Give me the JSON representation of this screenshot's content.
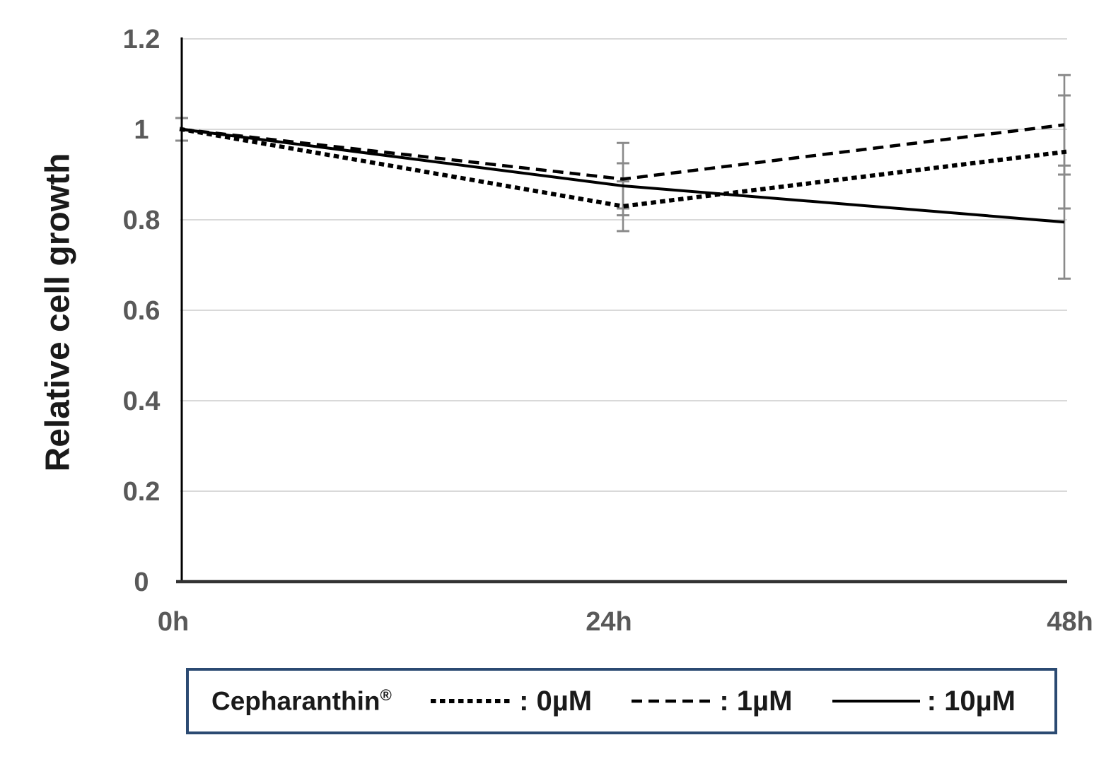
{
  "chart_data": {
    "type": "line",
    "title": "",
    "xlabel": "",
    "ylabel": "Relative cell growth",
    "categories": [
      "0h",
      "24h",
      "48h"
    ],
    "series": [
      {
        "name": "0µM",
        "pattern": "dotted",
        "values": [
          1.0,
          0.83,
          0.95
        ],
        "error": [
          0.025,
          0.055,
          0.125
        ]
      },
      {
        "name": "1µM",
        "pattern": "dashed",
        "values": [
          1.0,
          0.89,
          1.01
        ],
        "error": [
          0.025,
          0.08,
          0.11
        ]
      },
      {
        "name": "10µM",
        "pattern": "solid",
        "values": [
          1.0,
          0.875,
          0.795
        ],
        "error": [
          0.025,
          0.05,
          0.125
        ]
      }
    ],
    "ylim": [
      0,
      1.2
    ],
    "yticks": [
      0,
      0.2,
      0.4,
      0.6,
      0.8,
      1,
      1.2
    ],
    "ytick_labels": [
      "0",
      "0.2",
      "0.4",
      "0.6",
      "0.8",
      "1",
      "1.2"
    ],
    "grid": "horizontal",
    "legend_position": "bottom",
    "colors": {
      "line": "#000000",
      "error_bar": "#8a8a8a",
      "gridline": "#d9d9d9",
      "tick_label": "#595959",
      "y_axis": "#000000",
      "x_axis": "#333333",
      "legend_border": "#2b4a72"
    }
  },
  "legend": {
    "title": "Cepharanthin",
    "title_mark": "®",
    "items": [
      {
        "label": ": 0µM",
        "pattern": "dotted"
      },
      {
        "label": ": 1µM",
        "pattern": "dashed"
      },
      {
        "label": ": 10µM",
        "pattern": "solid"
      }
    ]
  }
}
